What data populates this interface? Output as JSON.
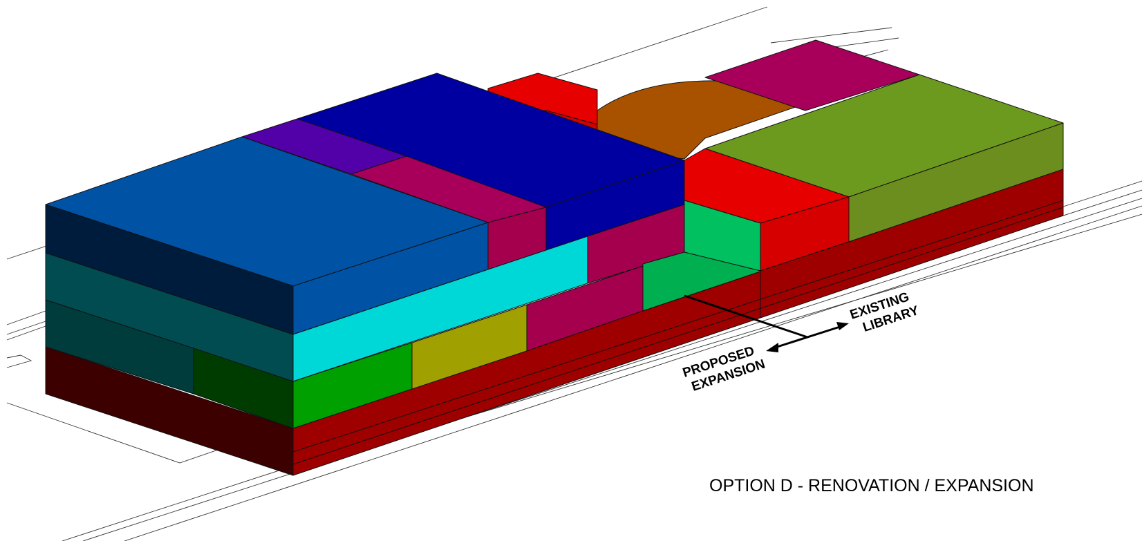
{
  "title": "OPTION D - RENOVATION / EXPANSION",
  "annotations": {
    "proposed_line1": "PROPOSED",
    "proposed_line2": "EXPANSION",
    "existing_line1": "EXISTING",
    "existing_line2": "LIBRARY"
  },
  "colors": {
    "background": "#ffffff",
    "linework": "#111111",
    "blue_top": "#0052a4",
    "navy_top": "#0000a0",
    "violet_top": "#5200a8",
    "magenta": "#a4004e",
    "purple_magenta": "#a8005a",
    "red": "#e60000",
    "dark_red": "#9e0000",
    "orange_brown": "#a85200",
    "olive_green": "#6c9a1e",
    "cyan": "#00d8d8",
    "teal": "#004c50",
    "dark_teal": "#003c3c",
    "green": "#00a000",
    "dark_green": "#003c00",
    "olive_yellow": "#a0a000",
    "spring_green": "#00c060",
    "maroon": "#3c0000",
    "navy_dark": "#001c3c"
  }
}
